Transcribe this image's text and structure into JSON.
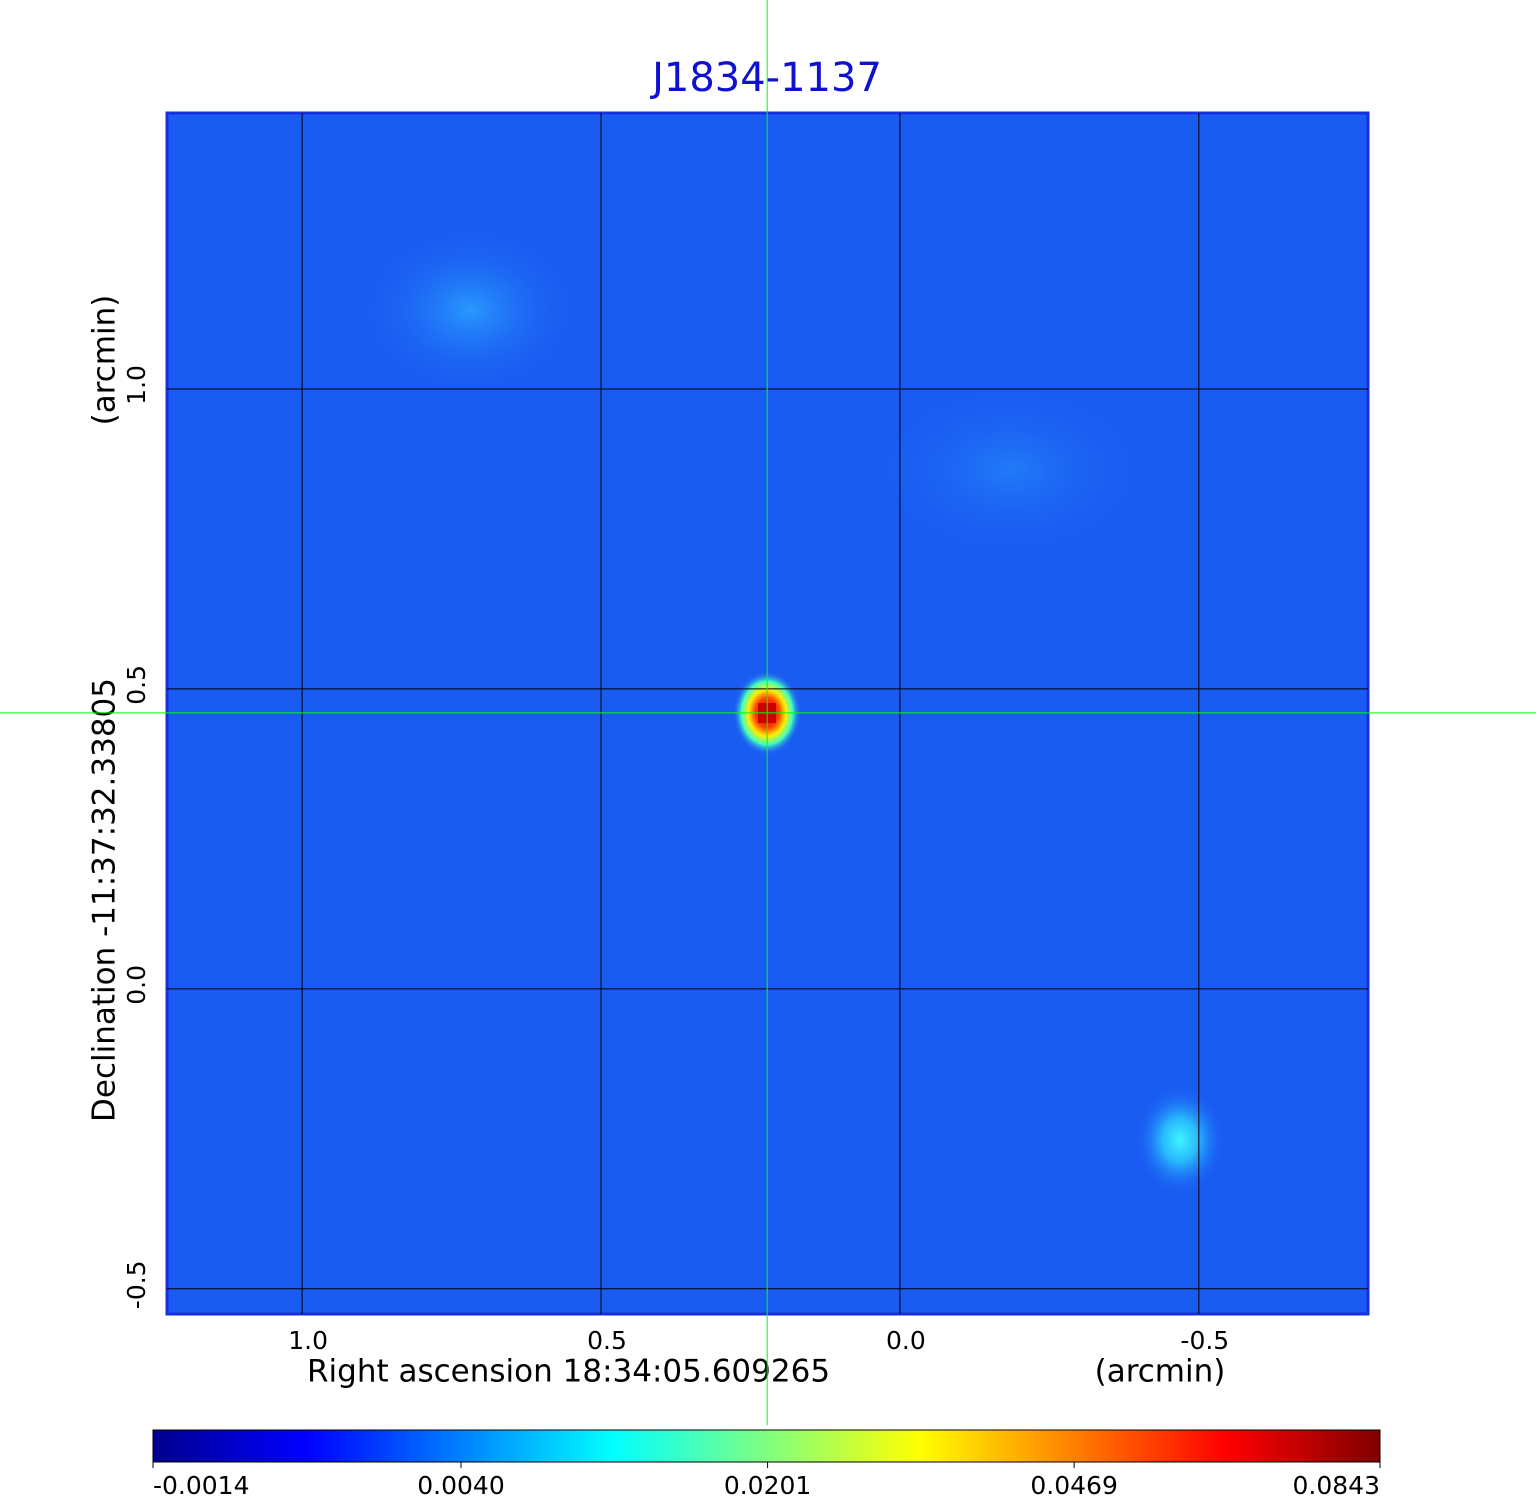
{
  "chart_data": {
    "type": "image",
    "title": "J1834-1137",
    "x_label": "Right ascension  18:34:05.609265",
    "x_unit": "(arcmin)",
    "y_label": "Declination  -11:37:32.33805",
    "y_unit": "(arcmin)",
    "xlim": [
      1.226,
      -0.783
    ],
    "ylim": [
      -0.542,
      1.46
    ],
    "xticks": [
      {
        "value": 1,
        "label": "1.0"
      },
      0.5,
      {
        "value": 0,
        "label": "0.0"
      },
      -0.5
    ],
    "yticks": [
      -0.5,
      {
        "value": 0,
        "label": "0.0"
      },
      0.5,
      {
        "value": 1,
        "label": "1.0"
      }
    ],
    "grid": true,
    "grid_color": "#000000",
    "crosshair": {
      "x": 0.222,
      "y": 0.46,
      "color": "#00ff00"
    },
    "colorbar": {
      "lim": [
        -0.0014,
        0.0843
      ],
      "scale": "sqrt",
      "ticks": [
        -0.0014,
        {
          "value": 0.004,
          "label": "0.0040"
        },
        0.0201,
        0.0469,
        0.0843
      ]
    }
  }
}
